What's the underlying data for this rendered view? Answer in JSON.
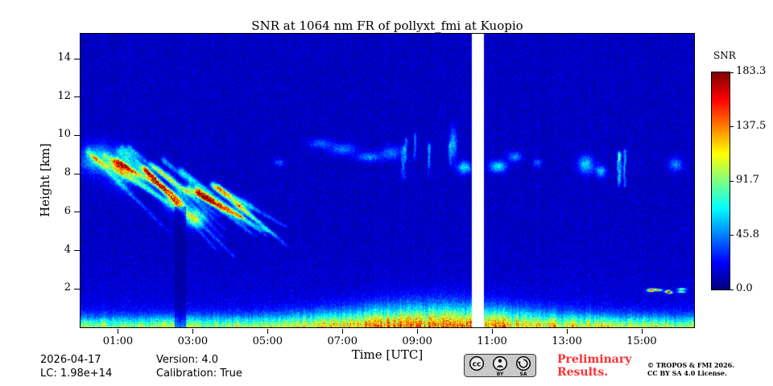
{
  "chart_data": {
    "type": "heatmap",
    "title": "SNR at 1064 nm FR of pollyxt_fmi at Kuopio",
    "xlabel": "Time [UTC]",
    "ylabel": "Height [km]",
    "x_range_hours": [
      0,
      16.4
    ],
    "x_tick_hours": [
      1,
      3,
      5,
      7,
      9,
      11,
      13,
      15
    ],
    "x_tick_labels": [
      "01:00",
      "03:00",
      "05:00",
      "07:00",
      "09:00",
      "11:00",
      "13:00",
      "15:00"
    ],
    "ylim": [
      0,
      15.3
    ],
    "y_ticks": [
      2,
      4,
      6,
      8,
      10,
      12,
      14
    ],
    "colorbar": {
      "label": "SNR",
      "min": 0.0,
      "max": 183.3,
      "tick_labels": [
        "183.3",
        "137.5",
        "91.7",
        "45.8",
        "0.0"
      ],
      "colormap": "jet"
    },
    "data_gap_hours": [
      10.45,
      10.78
    ],
    "background": {
      "snr_min": 7,
      "snr_max": 23
    },
    "boundary_layer": {
      "base_snr": 70,
      "midday_boost": 45,
      "midday_center": 9.3,
      "midday_width": 2.7,
      "afternoon_boost": 12,
      "afternoon_center": 13.8,
      "afternoon_width": 1.6,
      "depth_km": 0.55,
      "midday_depth_km": 1.05,
      "haze_snr": 14,
      "haze_scale_km": 1.4
    },
    "shadows": [
      {
        "t": [
          2.5,
          2.8
        ],
        "h_max": 6.3,
        "factor": 0.5
      }
    ],
    "features": [
      {
        "type": "blob",
        "t": 0.45,
        "h": 8.8,
        "dt": 0.45,
        "dh": 0.7,
        "snr": 55
      },
      {
        "type": "blob",
        "t": 1.1,
        "h": 8.2,
        "dt": 0.35,
        "dh": 0.9,
        "snr": 45
      },
      {
        "type": "fallstreaks",
        "t": [
          0.15,
          1.5
        ],
        "top": [
          8.5,
          9.4
        ],
        "len": [
          1.2,
          2.2
        ],
        "slope": -1.5,
        "n": 11,
        "snr": 50
      },
      {
        "type": "fallstreaks",
        "t": [
          1.5,
          2.7
        ],
        "top": [
          7.9,
          8.8
        ],
        "len": [
          1.4,
          2.4
        ],
        "slope": -1.7,
        "n": 9,
        "snr": 55
      },
      {
        "type": "fallstreaks",
        "t": [
          2.7,
          3.8
        ],
        "top": [
          6.7,
          7.7
        ],
        "len": [
          1.2,
          2.0
        ],
        "slope": -1.3,
        "n": 8,
        "snr": 70
      },
      {
        "type": "blob",
        "t": 3.05,
        "h": 5.7,
        "dt": 0.3,
        "dh": 0.45,
        "snr": 65
      },
      {
        "type": "blob",
        "t": 2.5,
        "h": 6.6,
        "dt": 0.25,
        "dh": 0.5,
        "snr": 55
      },
      {
        "type": "blob",
        "t": 4.3,
        "h": 6.3,
        "dt": 0.25,
        "dh": 0.4,
        "snr": 35
      },
      {
        "type": "blob",
        "t": 5.3,
        "h": 8.6,
        "dt": 0.15,
        "dh": 0.2,
        "snr": 25
      },
      {
        "type": "blob",
        "t": 6.4,
        "h": 9.6,
        "dt": 0.3,
        "dh": 0.25,
        "snr": 28
      },
      {
        "type": "blob",
        "t": 7.0,
        "h": 9.3,
        "dt": 0.35,
        "dh": 0.3,
        "snr": 32
      },
      {
        "type": "blob",
        "t": 7.7,
        "h": 8.9,
        "dt": 0.3,
        "dh": 0.25,
        "snr": 36
      },
      {
        "type": "blob",
        "t": 8.3,
        "h": 9.1,
        "dt": 0.25,
        "dh": 0.35,
        "snr": 33
      },
      {
        "type": "vstreaks",
        "t": [
          8.5,
          10.1
        ],
        "top": [
          9.3,
          10.2
        ],
        "len": [
          1.0,
          1.9
        ],
        "n": 7,
        "snr": 38
      },
      {
        "type": "blob",
        "t": 9.95,
        "h": 9.6,
        "dt": 0.1,
        "dh": 0.8,
        "snr": 42
      },
      {
        "type": "blob",
        "t": 10.25,
        "h": 8.35,
        "dt": 0.18,
        "dh": 0.3,
        "snr": 55
      },
      {
        "type": "blob",
        "t": 11.15,
        "h": 8.4,
        "dt": 0.22,
        "dh": 0.3,
        "snr": 55
      },
      {
        "type": "blob",
        "t": 11.6,
        "h": 8.9,
        "dt": 0.18,
        "dh": 0.25,
        "snr": 38
      },
      {
        "type": "blob",
        "t": 12.2,
        "h": 8.6,
        "dt": 0.12,
        "dh": 0.2,
        "snr": 28
      },
      {
        "type": "blob",
        "t": 13.5,
        "h": 8.5,
        "dt": 0.2,
        "dh": 0.45,
        "snr": 50
      },
      {
        "type": "blob",
        "t": 13.9,
        "h": 8.15,
        "dt": 0.13,
        "dh": 0.3,
        "snr": 45
      },
      {
        "type": "vstreaks",
        "t": [
          14.35,
          14.6
        ],
        "top": [
          9.1,
          9.35
        ],
        "len": [
          1.5,
          1.9
        ],
        "n": 3,
        "snr": 50
      },
      {
        "type": "blob",
        "t": 15.9,
        "h": 8.5,
        "dt": 0.18,
        "dh": 0.35,
        "snr": 35
      },
      {
        "type": "dashes",
        "t": [
          15.15,
          16.35
        ],
        "h": [
          1.75,
          2.1
        ],
        "n": 9,
        "snr": 90
      }
    ]
  },
  "footer": {
    "date": "2026-04-17",
    "lc": "LC: 1.98e+14",
    "version": "Version: 4.0",
    "calibration": "Calibration: True",
    "preliminary_line1": "Preliminary",
    "preliminary_line2": "Results.",
    "copyright_line1": "© TROPOS & FMI 2026.",
    "copyright_line2": "CC BY SA 4.0 License.",
    "license_badge": "CC BY-SA"
  },
  "colors": {
    "preliminary_red": "#ff3030",
    "frame": "#000000",
    "background": "#ffffff"
  }
}
